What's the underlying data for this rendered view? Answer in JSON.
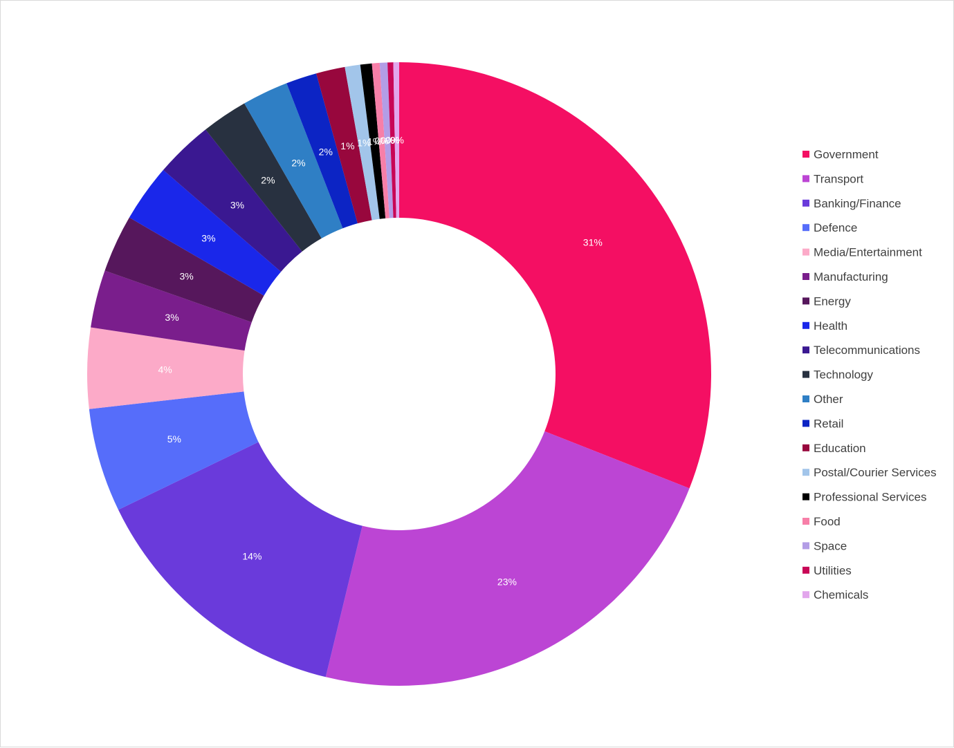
{
  "chart_data": {
    "type": "pie",
    "variant": "donut",
    "title": "",
    "legend_position": "right",
    "categories": [
      "Government",
      "Transport",
      "Banking/Finance",
      "Defence",
      "Media/Entertainment",
      "Manufacturing",
      "Energy",
      "Health",
      "Telecommunications",
      "Technology",
      "Other",
      "Retail",
      "Education",
      "Postal/Courier Services",
      "Professional Services",
      "Food",
      "Space",
      "Utilities",
      "Chemicals"
    ],
    "values": [
      31.1,
      22.9,
      14.1,
      5.4,
      4.2,
      3.0,
      3.0,
      3.0,
      3.0,
      2.4,
      2.4,
      1.6,
      1.5,
      0.8,
      0.6,
      0.4,
      0.4,
      0.3,
      0.3
    ],
    "labels": [
      "31%",
      "23%",
      "14%",
      "5%",
      "4%",
      "3%",
      "3%",
      "3%",
      "3%",
      "2%",
      "2%",
      "2%",
      "1%",
      "1%",
      "1%",
      "0%",
      "0%",
      "0%",
      "0%"
    ],
    "colors": [
      "#f40f63",
      "#bc45d4",
      "#6a3adb",
      "#566dfa",
      "#fcaac8",
      "#7a1e8c",
      "#56175c",
      "#1a27ea",
      "#3a1891",
      "#283140",
      "#2f7fc5",
      "#0c24c4",
      "#98073d",
      "#a2c5ea",
      "#000000",
      "#f77fa8",
      "#b39de6",
      "#c80656",
      "#e2a6ec"
    ]
  }
}
